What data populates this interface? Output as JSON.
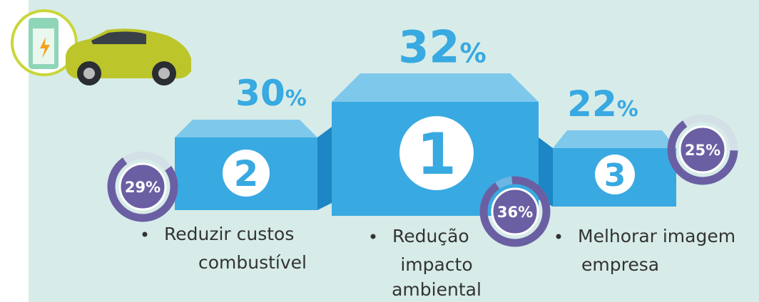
{
  "podiums": [
    {
      "rank": "2",
      "value": "30",
      "unit": "%",
      "label": [
        "Reduzir custos",
        "combustível"
      ],
      "ring": 29,
      "ring_label": "29%"
    },
    {
      "rank": "1",
      "value": "32",
      "unit": "%",
      "label": [
        "Redução",
        "impacto",
        "ambiental"
      ],
      "ring": 36,
      "ring_label": "36%"
    },
    {
      "rank": "3",
      "value": "22",
      "unit": "%",
      "label": [
        "Melhorar imagem",
        "empresa"
      ],
      "ring": 25,
      "ring_label": "25%"
    }
  ]
}
